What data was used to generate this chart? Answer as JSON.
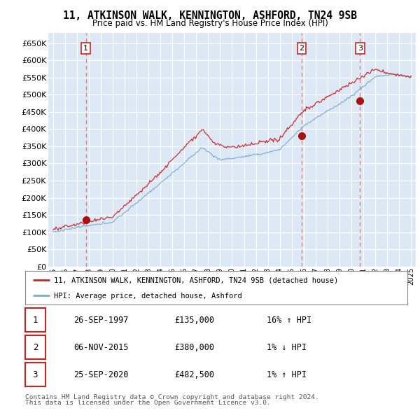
{
  "title": "11, ATKINSON WALK, KENNINGTON, ASHFORD, TN24 9SB",
  "subtitle": "Price paid vs. HM Land Registry's House Price Index (HPI)",
  "ylim": [
    0,
    680000
  ],
  "yticks": [
    0,
    50000,
    100000,
    150000,
    200000,
    250000,
    300000,
    350000,
    400000,
    450000,
    500000,
    550000,
    600000,
    650000
  ],
  "xlim_start": 1994.6,
  "xlim_end": 2025.4,
  "background_color": "#ffffff",
  "plot_bg_color": "#dce8f5",
  "grid_color": "#ffffff",
  "hpi_line_color": "#7aaad0",
  "price_line_color": "#cc2222",
  "vline_color": "#e08080",
  "marker_color": "#aa1111",
  "sale_points": [
    {
      "year": 1997.74,
      "price": 135000,
      "label": "1"
    },
    {
      "year": 2015.84,
      "price": 380000,
      "label": "2"
    },
    {
      "year": 2020.73,
      "price": 482500,
      "label": "3"
    }
  ],
  "table_rows": [
    {
      "num": "1",
      "date": "26-SEP-1997",
      "price": "£135,000",
      "change": "16% ↑ HPI"
    },
    {
      "num": "2",
      "date": "06-NOV-2015",
      "price": "£380,000",
      "change": "1% ↓ HPI"
    },
    {
      "num": "3",
      "date": "25-SEP-2020",
      "price": "£482,500",
      "change": "1% ↑ HPI"
    }
  ],
  "legend_line1": "11, ATKINSON WALK, KENNINGTON, ASHFORD, TN24 9SB (detached house)",
  "legend_line2": "HPI: Average price, detached house, Ashford",
  "footer1": "Contains HM Land Registry data © Crown copyright and database right 2024.",
  "footer2": "This data is licensed under the Open Government Licence v3.0."
}
